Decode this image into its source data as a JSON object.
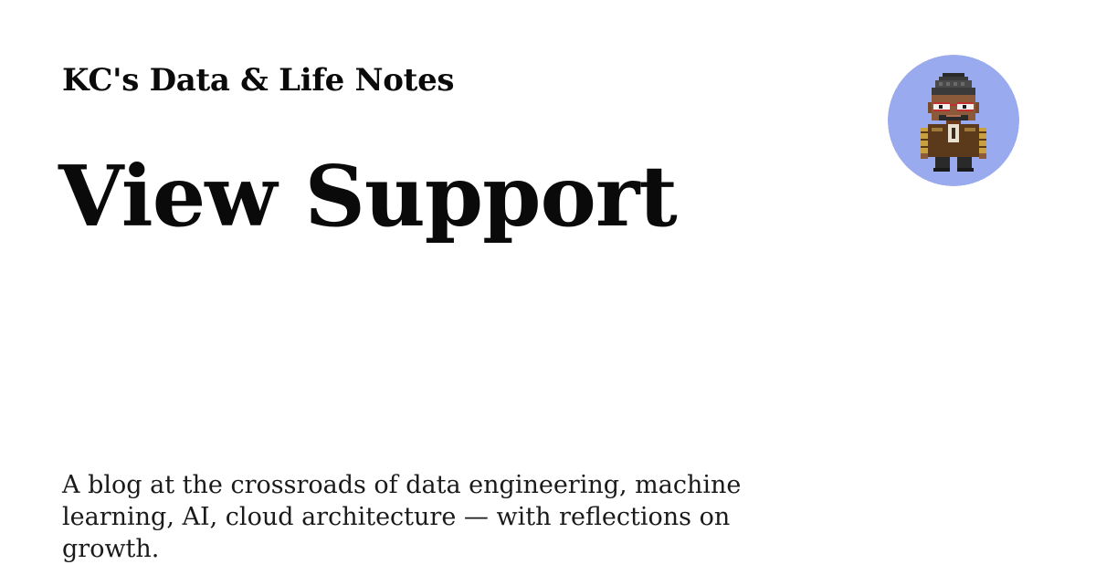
{
  "site": {
    "name": "KC's Data & Life Notes"
  },
  "page": {
    "title": "View Support"
  },
  "description": "A blog at the crossroads of data engineering, machine learning, AI, cloud architecture — with reflections on growth.",
  "avatar": {
    "icon": "pixel-art-character-icon",
    "background_color": "#99aaef"
  },
  "colors": {
    "background": "#ffffff",
    "text": "#0a0a0a"
  }
}
